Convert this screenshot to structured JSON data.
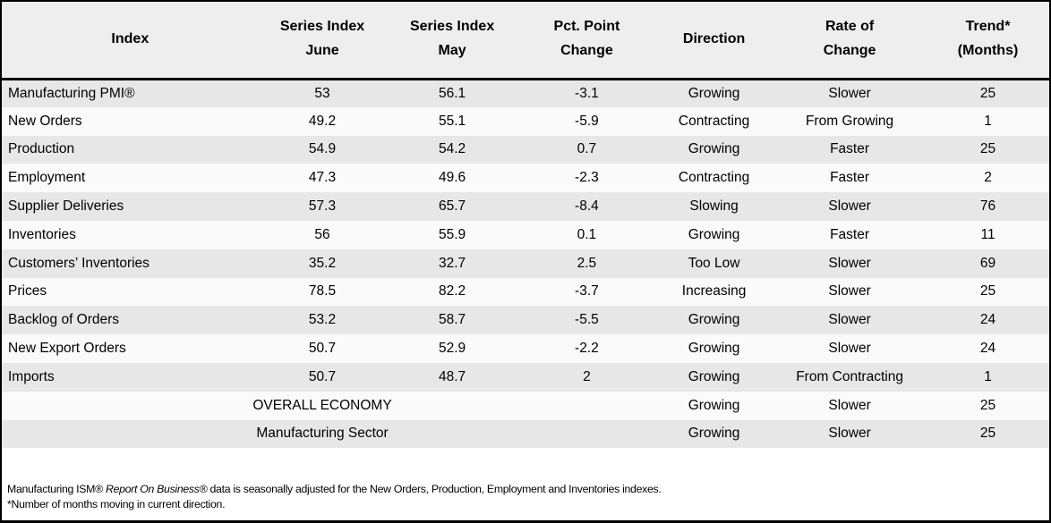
{
  "colors": {
    "border": "#000000",
    "header_bg": "#eeeeee",
    "row_gray": "#e7e7e7",
    "row_light": "#fafafa",
    "text": "#000000"
  },
  "table": {
    "columns": [
      "Index",
      "Series Index\nJune",
      "Series Index\nMay",
      "Pct. Point\nChange",
      "Direction",
      "Rate of\nChange",
      "Trend*\n(Months)"
    ],
    "rows": [
      {
        "index": "Manufacturing PMI®",
        "series_index_june": "53",
        "series_index_may": "56.1",
        "pct_point_change": "-3.1",
        "direction": "Growing",
        "rate_of_change": "Slower",
        "trend_months": "25"
      },
      {
        "index": "New Orders",
        "series_index_june": "49.2",
        "series_index_may": "55.1",
        "pct_point_change": "-5.9",
        "direction": "Contracting",
        "rate_of_change": "From Growing",
        "trend_months": "1"
      },
      {
        "index": "Production",
        "series_index_june": "54.9",
        "series_index_may": "54.2",
        "pct_point_change": "0.7",
        "direction": "Growing",
        "rate_of_change": "Faster",
        "trend_months": "25"
      },
      {
        "index": "Employment",
        "series_index_june": "47.3",
        "series_index_may": "49.6",
        "pct_point_change": "-2.3",
        "direction": "Contracting",
        "rate_of_change": "Faster",
        "trend_months": "2"
      },
      {
        "index": "Supplier Deliveries",
        "series_index_june": "57.3",
        "series_index_may": "65.7",
        "pct_point_change": "-8.4",
        "direction": "Slowing",
        "rate_of_change": "Slower",
        "trend_months": "76"
      },
      {
        "index": "Inventories",
        "series_index_june": "56",
        "series_index_may": "55.9",
        "pct_point_change": "0.1",
        "direction": "Growing",
        "rate_of_change": "Faster",
        "trend_months": "11"
      },
      {
        "index": "Customers’ Inventories",
        "series_index_june": "35.2",
        "series_index_may": "32.7",
        "pct_point_change": "2.5",
        "direction": "Too Low",
        "rate_of_change": "Slower",
        "trend_months": "69"
      },
      {
        "index": "Prices",
        "series_index_june": "78.5",
        "series_index_may": "82.2",
        "pct_point_change": "-3.7",
        "direction": "Increasing",
        "rate_of_change": "Slower",
        "trend_months": "25"
      },
      {
        "index": "Backlog of Orders",
        "series_index_june": "53.2",
        "series_index_may": "58.7",
        "pct_point_change": "-5.5",
        "direction": "Growing",
        "rate_of_change": "Slower",
        "trend_months": "24"
      },
      {
        "index": "New Export Orders",
        "series_index_june": "50.7",
        "series_index_may": "52.9",
        "pct_point_change": "-2.2",
        "direction": "Growing",
        "rate_of_change": "Slower",
        "trend_months": "24"
      },
      {
        "index": "Imports",
        "series_index_june": "50.7",
        "series_index_may": "48.7",
        "pct_point_change": "2",
        "direction": "Growing",
        "rate_of_change": "From Contracting",
        "trend_months": "1"
      }
    ],
    "summary_rows": [
      {
        "label": "OVERALL ECONOMY",
        "direction": "Growing",
        "rate_of_change": "Slower",
        "trend_months": "25"
      },
      {
        "label": "Manufacturing Sector",
        "direction": "Growing",
        "rate_of_change": "Slower",
        "trend_months": "25"
      }
    ]
  },
  "footnotes": {
    "line1_prefix": "Manufacturing ISM® ",
    "line1_italic": "Report On Business®",
    "line1_suffix": " data is seasonally adjusted for the New Orders, Production, Employment and Inventories indexes.",
    "line2": "*Number of months moving in current direction."
  }
}
